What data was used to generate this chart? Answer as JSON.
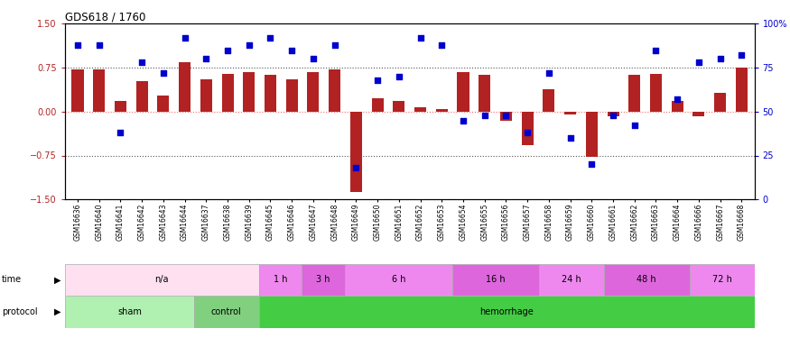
{
  "title": "GDS618 / 1760",
  "samples": [
    "GSM16636",
    "GSM16640",
    "GSM16641",
    "GSM16642",
    "GSM16643",
    "GSM16644",
    "GSM16637",
    "GSM16638",
    "GSM16639",
    "GSM16645",
    "GSM16646",
    "GSM16647",
    "GSM16648",
    "GSM16649",
    "GSM16650",
    "GSM16651",
    "GSM16652",
    "GSM16653",
    "GSM16654",
    "GSM16655",
    "GSM16656",
    "GSM16657",
    "GSM16658",
    "GSM16659",
    "GSM16660",
    "GSM16661",
    "GSM16662",
    "GSM16663",
    "GSM16664",
    "GSM16666",
    "GSM16667",
    "GSM16668"
  ],
  "log_ratio": [
    0.72,
    0.72,
    0.18,
    0.52,
    0.28,
    0.85,
    0.55,
    0.65,
    0.68,
    0.62,
    0.55,
    0.68,
    0.72,
    -1.38,
    0.22,
    0.18,
    0.08,
    0.05,
    0.68,
    0.62,
    -0.15,
    -0.58,
    0.38,
    -0.05,
    -0.78,
    -0.08,
    0.62,
    0.65,
    0.18,
    -0.08,
    0.32,
    0.75
  ],
  "percentile": [
    88,
    88,
    38,
    78,
    72,
    92,
    80,
    85,
    88,
    92,
    85,
    80,
    88,
    18,
    68,
    70,
    92,
    88,
    45,
    48,
    48,
    38,
    72,
    35,
    20,
    48,
    42,
    85,
    57,
    78,
    80,
    82
  ],
  "bar_color": "#b22222",
  "point_color": "#0000cd",
  "zero_line_color": "#ff6666",
  "dotted_line_color": "#555555",
  "ylim_left": [
    -1.5,
    1.5
  ],
  "ylim_right": [
    0,
    100
  ],
  "yticks_left": [
    -1.5,
    -0.75,
    0.0,
    0.75,
    1.5
  ],
  "yticks_right": [
    0,
    25,
    50,
    75,
    100
  ],
  "protocol_groups": [
    {
      "label": "sham",
      "count": 6,
      "color": "#b0f0b0"
    },
    {
      "label": "control",
      "count": 3,
      "color": "#80d080"
    },
    {
      "label": "hemorrhage",
      "count": 23,
      "color": "#44cc44"
    }
  ],
  "time_groups": [
    {
      "label": "n/a",
      "count": 9,
      "color": "#ffe0f0"
    },
    {
      "label": "1 h",
      "count": 2,
      "color": "#ee88ee"
    },
    {
      "label": "3 h",
      "count": 2,
      "color": "#dd66dd"
    },
    {
      "label": "6 h",
      "count": 5,
      "color": "#ee88ee"
    },
    {
      "label": "16 h",
      "count": 4,
      "color": "#dd66dd"
    },
    {
      "label": "24 h",
      "count": 3,
      "color": "#ee88ee"
    },
    {
      "label": "48 h",
      "count": 4,
      "color": "#dd66dd"
    },
    {
      "label": "72 h",
      "count": 3,
      "color": "#ee88ee"
    }
  ]
}
